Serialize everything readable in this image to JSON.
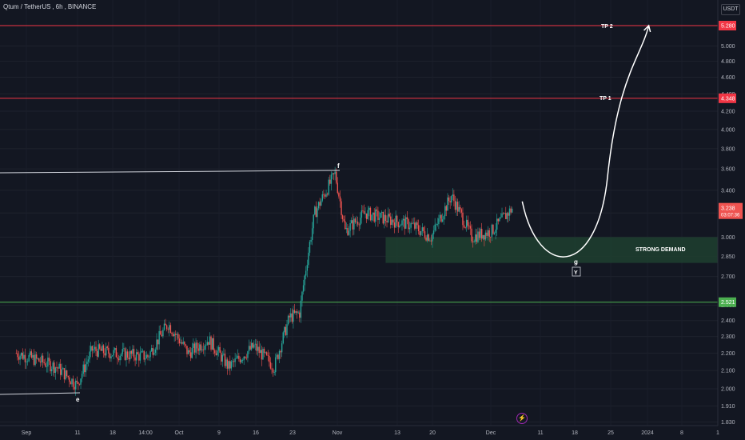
{
  "header": {
    "symbol": "Qtum / TetherUS",
    "interval": "6h",
    "exchange": "BINANCE"
  },
  "currency_button": "USDT",
  "annotations": {
    "tp2": "TP 2",
    "tp1": "TP 1",
    "demand": "STRONG DEMAND",
    "wave_e": "e",
    "wave_f": "f",
    "wave_g": "g",
    "wave_y": "Y"
  },
  "colors": {
    "background": "#131722",
    "up": "#26a69a",
    "down": "#ef5350",
    "tp_line": "#f23645",
    "support_line": "#4caf50",
    "demand_zone": "#1e3d2f"
  },
  "chart_data": {
    "type": "candlestick",
    "y_axis": {
      "scale": "log",
      "range": [
        1.8,
        5.5
      ],
      "ticks": [
        "1.830",
        "1.910",
        "2.000",
        "2.100",
        "2.200",
        "2.300",
        "2.400",
        "2.500",
        "2.700",
        "2.850",
        "3.000",
        "3.200",
        "3.400",
        "3.600",
        "3.800",
        "4.000",
        "4.200",
        "4.400",
        "4.600",
        "4.800",
        "5.000",
        "5.280"
      ],
      "grid": true
    },
    "x_axis": {
      "ticks": [
        "Sep",
        "11",
        "18",
        "14:00",
        "Oct",
        "9",
        "16",
        "23",
        "Nov",
        "13",
        "20",
        "Dec",
        "11",
        "18",
        "25",
        "2024",
        "8",
        "1"
      ]
    },
    "levels": [
      {
        "name": "TP 2",
        "value": 5.28,
        "label": "5.280"
      },
      {
        "name": "TP 1",
        "value": 4.348,
        "label": "4.348"
      },
      {
        "name": "support",
        "value": 2.521,
        "label": "2.521"
      }
    ],
    "last_price": {
      "value": 3.238,
      "label": "3.238",
      "countdown": "03:07:36"
    },
    "demand_zone": {
      "low": 2.8,
      "high": 3.0
    },
    "price_path_approx": [
      {
        "t": "Aug 30",
        "close": 2.2
      },
      {
        "t": "Sep 7",
        "close": 2.12
      },
      {
        "t": "Sep 11",
        "close": 2.02
      },
      {
        "t": "Sep 14",
        "close": 2.22
      },
      {
        "t": "Sep 18",
        "close": 2.2
      },
      {
        "t": "Sep 25",
        "close": 2.18
      },
      {
        "t": "Sep 29",
        "close": 2.38
      },
      {
        "t": "Oct 3",
        "close": 2.2
      },
      {
        "t": "Oct 7",
        "close": 2.28
      },
      {
        "t": "Oct 11",
        "close": 2.12
      },
      {
        "t": "Oct 16",
        "close": 2.24
      },
      {
        "t": "Oct 20",
        "close": 2.12
      },
      {
        "t": "Oct 23",
        "close": 2.42
      },
      {
        "t": "Oct 25",
        "close": 2.45
      },
      {
        "t": "Oct 28",
        "close": 3.2
      },
      {
        "t": "Nov 1",
        "close": 3.55
      },
      {
        "t": "Nov 3",
        "close": 3.05
      },
      {
        "t": "Nov 7",
        "close": 3.2
      },
      {
        "t": "Nov 11",
        "close": 3.15
      },
      {
        "t": "Nov 16",
        "close": 3.1
      },
      {
        "t": "Nov 20",
        "close": 3.0
      },
      {
        "t": "Nov 24",
        "close": 3.35
      },
      {
        "t": "Nov 28",
        "close": 3.0
      },
      {
        "t": "Dec 2",
        "close": 3.05
      },
      {
        "t": "Dec 6",
        "close": 3.238
      }
    ],
    "projection": [
      {
        "t": "Dec 8",
        "value": 3.3
      },
      {
        "t": "Dec 18",
        "value": 2.83
      },
      {
        "t": "Dec 28",
        "value": 3.3
      },
      {
        "t": "Jan 2",
        "value": 5.28
      }
    ]
  }
}
